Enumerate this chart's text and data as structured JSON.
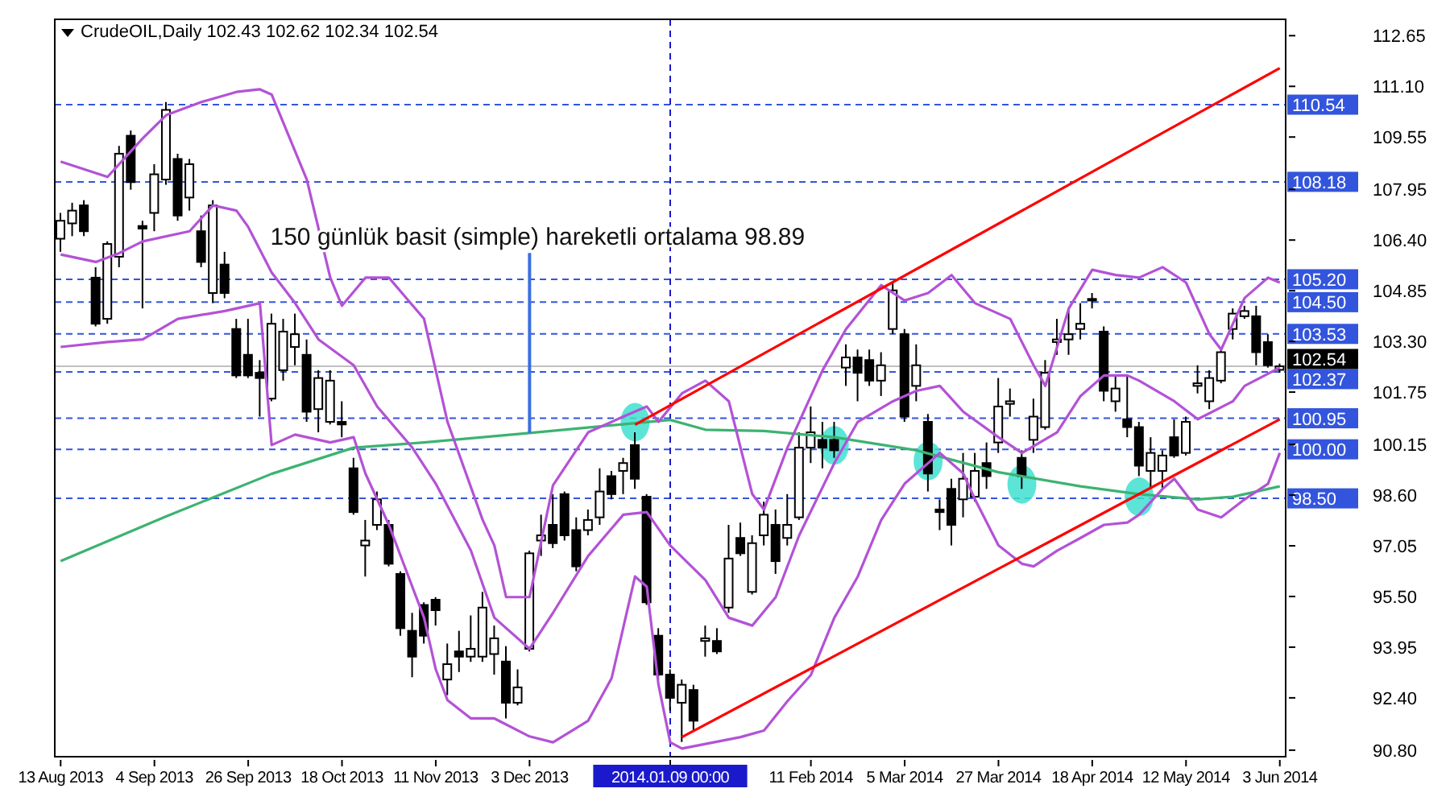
{
  "chart_data": {
    "type": "candlestick",
    "title": "CrudeOIL,Daily 102.43 102.62 102.34 102.54",
    "categories": [
      "13 Aug 2013",
      null,
      null,
      null,
      null,
      null,
      null,
      null,
      "4 Sep 2013",
      null,
      null,
      null,
      null,
      null,
      null,
      null,
      "26 Sep 2013",
      null,
      null,
      null,
      null,
      null,
      null,
      null,
      "18 Oct 2013",
      null,
      null,
      null,
      null,
      null,
      null,
      null,
      "11 Nov 2013",
      null,
      null,
      null,
      null,
      null,
      null,
      null,
      "3 Dec 2013",
      null,
      null,
      null,
      null,
      null,
      null,
      null,
      null,
      null,
      null,
      null,
      "2014.01.09 00:00",
      null,
      null,
      null,
      null,
      null,
      null,
      null,
      null,
      null,
      null,
      null,
      "11 Feb 2014",
      null,
      null,
      null,
      null,
      null,
      null,
      null,
      "5 Mar 2014",
      null,
      null,
      null,
      null,
      null,
      null,
      null,
      "27 Mar 2014",
      null,
      null,
      null,
      null,
      null,
      null,
      null,
      "18 Apr 2014",
      null,
      null,
      null,
      null,
      null,
      null,
      null,
      "12 May 2014",
      null,
      null,
      null,
      null,
      null,
      null,
      null,
      "3 Jun 2014"
    ],
    "ohlc": [
      [
        106.44,
        107.23,
        106.04,
        106.99
      ],
      [
        106.91,
        107.54,
        106.52,
        107.3
      ],
      [
        107.46,
        107.62,
        106.52,
        106.67
      ],
      [
        105.25,
        105.57,
        103.76,
        103.84
      ],
      [
        103.99,
        106.36,
        103.84,
        106.28
      ],
      [
        105.89,
        109.28,
        105.57,
        109.04
      ],
      [
        109.59,
        109.75,
        107.94,
        108.17
      ],
      [
        106.83,
        106.99,
        104.31,
        106.75
      ],
      [
        107.23,
        108.72,
        106.67,
        108.41
      ],
      [
        108.25,
        110.62,
        108.09,
        110.38
      ],
      [
        108.88,
        109.04,
        106.99,
        107.15
      ],
      [
        107.7,
        108.88,
        107.3,
        108.72
      ],
      [
        106.67,
        107.15,
        105.57,
        105.73
      ],
      [
        104.78,
        107.62,
        104.47,
        107.46
      ],
      [
        105.65,
        106.04,
        104.62,
        104.78
      ],
      [
        103.68,
        103.99,
        102.18,
        102.26
      ],
      [
        102.89,
        103.99,
        102.18,
        102.26
      ],
      [
        102.34,
        102.73,
        101.0,
        102.18
      ],
      [
        101.55,
        104.15,
        101.47,
        103.84
      ],
      [
        102.42,
        103.99,
        102.1,
        103.6
      ],
      [
        103.13,
        104.15,
        102.57,
        103.52
      ],
      [
        102.89,
        103.36,
        100.84,
        101.15
      ],
      [
        101.23,
        102.42,
        100.52,
        102.18
      ],
      [
        100.84,
        102.42,
        100.76,
        102.1
      ],
      [
        100.84,
        101.47,
        100.37,
        100.76
      ],
      [
        99.42,
        99.74,
        98.0,
        98.08
      ],
      [
        97.06,
        97.84,
        96.11,
        97.21
      ],
      [
        97.69,
        98.71,
        97.53,
        98.47
      ],
      [
        97.69,
        97.84,
        96.42,
        96.5
      ],
      [
        96.19,
        96.27,
        94.3,
        94.53
      ],
      [
        94.45,
        95.0,
        93.03,
        93.66
      ],
      [
        95.24,
        95.32,
        94.06,
        94.3
      ],
      [
        95.4,
        95.48,
        94.61,
        95.08
      ],
      [
        92.96,
        94.06,
        92.48,
        93.43
      ],
      [
        93.82,
        94.45,
        93.19,
        93.66
      ],
      [
        93.66,
        94.92,
        93.5,
        93.9
      ],
      [
        93.66,
        95.64,
        93.5,
        95.16
      ],
      [
        93.74,
        94.61,
        93.11,
        94.22
      ],
      [
        93.51,
        93.98,
        91.77,
        92.25
      ],
      [
        92.25,
        93.27,
        92.17,
        92.72
      ],
      [
        93.9,
        96.9,
        93.82,
        96.82
      ],
      [
        97.21,
        98.0,
        96.74,
        97.37
      ],
      [
        97.69,
        98.63,
        96.98,
        97.13
      ],
      [
        98.63,
        98.71,
        97.21,
        97.37
      ],
      [
        97.53,
        97.92,
        96.27,
        96.42
      ],
      [
        97.53,
        98.16,
        97.37,
        97.84
      ],
      [
        97.92,
        99.42,
        97.69,
        98.71
      ],
      [
        99.18,
        99.34,
        98.47,
        98.63
      ],
      [
        99.34,
        99.74,
        98.63,
        99.58
      ],
      [
        100.13,
        100.52,
        98.79,
        99.1
      ],
      [
        98.55,
        98.63,
        95.24,
        95.32
      ],
      [
        94.3,
        94.53,
        92.96,
        93.11
      ],
      [
        93.11,
        93.27,
        92.01,
        92.4
      ],
      [
        92.25,
        92.96,
        91.05,
        92.8
      ],
      [
        92.64,
        92.8,
        91.38,
        91.7
      ],
      [
        94.14,
        94.61,
        93.66,
        94.22
      ],
      [
        94.14,
        94.53,
        93.74,
        93.82
      ],
      [
        95.16,
        97.69,
        95.0,
        96.66
      ],
      [
        97.29,
        97.76,
        96.74,
        96.82
      ],
      [
        95.64,
        97.37,
        95.56,
        97.13
      ],
      [
        97.37,
        98.4,
        97.06,
        98.0
      ],
      [
        97.69,
        98.16,
        96.19,
        96.58
      ],
      [
        97.29,
        98.63,
        97.06,
        97.69
      ],
      [
        97.92,
        100.52,
        97.84,
        100.05
      ],
      [
        100.05,
        101.31,
        99.58,
        100.52
      ],
      [
        100.29,
        100.84,
        99.42,
        100.05
      ],
      [
        100.29,
        100.84,
        99.74,
        99.97
      ],
      [
        102.5,
        103.21,
        101.94,
        102.81
      ],
      [
        102.81,
        103.05,
        101.47,
        102.34
      ],
      [
        102.73,
        103.05,
        101.94,
        102.1
      ],
      [
        102.1,
        102.97,
        101.63,
        102.57
      ],
      [
        103.68,
        105.1,
        103.52,
        104.86
      ],
      [
        103.52,
        103.68,
        100.84,
        101.0
      ],
      [
        101.94,
        103.21,
        101.47,
        102.57
      ],
      [
        100.84,
        101.08,
        98.71,
        99.26
      ],
      [
        98.16,
        98.47,
        97.53,
        98.08
      ],
      [
        98.79,
        99.1,
        97.06,
        97.69
      ],
      [
        98.47,
        99.89,
        97.92,
        99.1
      ],
      [
        98.55,
        99.89,
        98.4,
        99.34
      ],
      [
        99.58,
        100.21,
        98.79,
        99.18
      ],
      [
        100.21,
        102.18,
        99.89,
        101.31
      ],
      [
        101.39,
        101.86,
        101.0,
        101.47
      ],
      [
        99.74,
        99.97,
        98.79,
        99.18
      ],
      [
        100.29,
        101.55,
        99.89,
        101.0
      ],
      [
        100.68,
        102.73,
        100.6,
        102.34
      ],
      [
        103.28,
        103.99,
        102.89,
        103.36
      ],
      [
        103.36,
        104.31,
        102.89,
        103.52
      ],
      [
        103.68,
        104.47,
        103.36,
        103.84
      ],
      [
        104.55,
        104.78,
        104.31,
        104.6
      ],
      [
        103.6,
        103.76,
        101.47,
        101.79
      ],
      [
        101.47,
        102.26,
        101.15,
        101.86
      ],
      [
        100.92,
        102.26,
        100.37,
        100.68
      ],
      [
        100.68,
        100.84,
        99.18,
        99.5
      ],
      [
        99.34,
        100.37,
        98.79,
        99.89
      ],
      [
        99.34,
        99.97,
        98.79,
        99.81
      ],
      [
        100.37,
        100.92,
        99.74,
        99.81
      ],
      [
        99.89,
        101.0,
        99.81,
        100.84
      ],
      [
        101.94,
        102.57,
        101.71,
        102.02
      ],
      [
        101.47,
        102.42,
        101.23,
        102.18
      ],
      [
        102.1,
        103.05,
        102.02,
        102.97
      ],
      [
        103.68,
        104.31,
        103.36,
        104.15
      ],
      [
        104.07,
        104.39,
        103.99,
        104.23
      ],
      [
        104.07,
        104.39,
        102.57,
        102.97
      ],
      [
        103.28,
        103.52,
        102.5,
        102.57
      ],
      [
        102.43,
        102.62,
        102.34,
        102.54
      ]
    ],
    "series": [
      {
        "type": "line",
        "color": "#3cb371",
        "values": [
          96.58,
          null,
          null,
          null,
          null,
          null,
          null,
          null,
          null,
          97.95,
          null,
          null,
          null,
          null,
          null,
          null,
          null,
          null,
          99.25,
          null,
          null,
          null,
          null,
          null,
          null,
          100.05,
          null,
          null,
          null,
          null,
          null,
          100.21,
          null,
          null,
          null,
          null,
          null,
          null,
          null,
          null,
          100.5,
          null,
          null,
          null,
          null,
          null,
          null,
          null,
          null,
          null,
          null,
          null,
          100.9,
          null,
          null,
          100.6,
          null,
          null,
          null,
          null,
          100.56,
          null,
          null,
          null,
          null,
          null,
          100.37,
          null,
          null,
          null,
          null,
          null,
          null,
          99.97,
          null,
          null,
          null,
          null,
          null,
          null,
          99.3,
          null,
          null,
          null,
          null,
          null,
          null,
          98.87,
          null,
          null,
          null,
          null,
          98.63,
          null,
          null,
          null,
          null,
          98.47,
          null,
          null,
          98.55,
          null,
          null,
          null,
          98.87
        ]
      },
      {
        "type": "line",
        "color": "#b352d6",
        "values": [
          108.8,
          null,
          null,
          null,
          108.33,
          null,
          null,
          109.51,
          null,
          110.22,
          null,
          null,
          110.62,
          null,
          null,
          110.93,
          null,
          111.01,
          110.85,
          null,
          null,
          108.25,
          null,
          105.25,
          104.39,
          null,
          105.25,
          null,
          105.25,
          null,
          null,
          103.99,
          null,
          100.84,
          null,
          null,
          97.84,
          97.06,
          95.48,
          null,
          95.48,
          null,
          98.9,
          null,
          null,
          100.52,
          null,
          null,
          101.0,
          null,
          101.31,
          100.84,
          null,
          101.71,
          null,
          102.1,
          null,
          101.47,
          null,
          98.63,
          98.16,
          null,
          100.05,
          null,
          null,
          102.42,
          null,
          103.68,
          null,
          null,
          105.02,
          null,
          104.55,
          null,
          104.78,
          null,
          105.33,
          null,
          104.47,
          null,
          null,
          103.99,
          null,
          102.57,
          101.94,
          null,
          104.31,
          null,
          105.49,
          null,
          105.33,
          null,
          105.25,
          null,
          105.57,
          null,
          105.1,
          null,
          103.52,
          103.05,
          null,
          104.63,
          null,
          105.25,
          105.1
        ]
      },
      {
        "type": "line",
        "color": "#b352d6",
        "values": [
          105.96,
          null,
          null,
          105.73,
          null,
          106.0,
          null,
          106.36,
          null,
          null,
          null,
          106.67,
          null,
          107.46,
          null,
          107.3,
          106.8,
          null,
          105.41,
          null,
          104.47,
          null,
          103.36,
          null,
          null,
          102.57,
          null,
          101.31,
          null,
          null,
          100.05,
          null,
          98.95,
          null,
          null,
          96.9,
          null,
          94.85,
          null,
          null,
          93.9,
          null,
          95.0,
          null,
          null,
          96.74,
          null,
          null,
          98.0,
          null,
          98.08,
          null,
          97.06,
          null,
          null,
          96.0,
          null,
          94.85,
          null,
          94.61,
          null,
          95.48,
          null,
          97.37,
          null,
          null,
          99.58,
          null,
          100.84,
          null,
          null,
          101.47,
          null,
          101.79,
          null,
          101.94,
          null,
          101.15,
          null,
          null,
          100.37,
          null,
          99.89,
          null,
          null,
          100.52,
          null,
          101.63,
          null,
          102.26,
          null,
          102.26,
          102.1,
          null,
          null,
          101.47,
          null,
          100.92,
          null,
          null,
          101.47,
          101.94,
          null,
          null,
          102.5
        ]
      },
      {
        "type": "line",
        "color": "#b352d6",
        "values": [
          103.13,
          null,
          null,
          null,
          103.28,
          null,
          null,
          103.36,
          null,
          null,
          103.99,
          null,
          null,
          null,
          104.23,
          null,
          null,
          104.47,
          100.13,
          null,
          100.45,
          null,
          null,
          100.21,
          null,
          100.37,
          99.26,
          null,
          97.69,
          null,
          null,
          94.85,
          93.27,
          92.33,
          null,
          91.77,
          null,
          91.77,
          null,
          null,
          91.22,
          null,
          91.04,
          null,
          null,
          91.7,
          null,
          93.0,
          null,
          96.11,
          95.8,
          92.8,
          91.04,
          90.85,
          null,
          null,
          null,
          null,
          91.2,
          null,
          91.4,
          null,
          92.3,
          null,
          93.1,
          null,
          94.85,
          null,
          96.11,
          null,
          97.84,
          null,
          98.95,
          null,
          null,
          99.89,
          null,
          99.26,
          98.47,
          null,
          97.06,
          null,
          96.5,
          96.42,
          null,
          96.9,
          null,
          97.29,
          null,
          97.69,
          null,
          97.76,
          98.0,
          null,
          98.79,
          99.1,
          null,
          98.16,
          null,
          97.92,
          null,
          98.47,
          null,
          98.95,
          99.89
        ]
      },
      {
        "type": "line",
        "color": "#ff0000",
        "values": [
          null,
          null,
          null,
          null,
          null,
          null,
          null,
          null,
          null,
          null,
          null,
          null,
          null,
          null,
          null,
          null,
          null,
          null,
          null,
          null,
          null,
          null,
          null,
          null,
          null,
          null,
          null,
          null,
          null,
          null,
          null,
          null,
          null,
          null,
          null,
          null,
          null,
          null,
          null,
          null,
          null,
          null,
          null,
          null,
          null,
          null,
          null,
          null,
          null,
          100.75,
          null,
          null,
          null,
          null,
          null,
          null,
          null,
          null,
          null,
          null,
          null,
          null,
          null,
          null,
          null,
          null,
          null,
          null,
          null,
          null,
          null,
          null,
          null,
          null,
          null,
          null,
          null,
          null,
          null,
          null,
          null,
          null,
          null,
          null,
          null,
          null,
          null,
          null,
          null,
          null,
          null,
          null,
          null,
          null,
          null,
          null,
          null,
          null,
          null,
          null,
          null,
          null,
          null,
          null,
          111.66
        ]
      },
      {
        "type": "line",
        "color": "#ff0000",
        "values": [
          null,
          null,
          null,
          null,
          null,
          null,
          null,
          null,
          null,
          null,
          null,
          null,
          null,
          null,
          null,
          null,
          null,
          null,
          null,
          null,
          null,
          null,
          null,
          null,
          null,
          null,
          null,
          null,
          null,
          null,
          null,
          null,
          null,
          null,
          null,
          null,
          null,
          null,
          null,
          null,
          null,
          null,
          null,
          null,
          null,
          null,
          null,
          null,
          null,
          null,
          null,
          null,
          null,
          91.2,
          null,
          null,
          null,
          null,
          null,
          null,
          null,
          null,
          null,
          null,
          null,
          null,
          null,
          null,
          null,
          null,
          null,
          null,
          null,
          null,
          null,
          null,
          null,
          null,
          null,
          null,
          null,
          null,
          null,
          null,
          null,
          null,
          null,
          null,
          null,
          null,
          null,
          null,
          null,
          null,
          null,
          null,
          null,
          null,
          null,
          null,
          null,
          null,
          null,
          null,
          100.92
        ]
      },
      {
        "type": "scatter",
        "color": "#40e0d0",
        "marker": "circle",
        "values": [
          null,
          null,
          null,
          null,
          null,
          null,
          null,
          null,
          null,
          null,
          null,
          null,
          null,
          null,
          null,
          null,
          null,
          null,
          null,
          null,
          null,
          null,
          null,
          null,
          null,
          null,
          null,
          null,
          null,
          null,
          null,
          null,
          null,
          null,
          null,
          null,
          null,
          null,
          null,
          null,
          null,
          null,
          null,
          null,
          null,
          null,
          null,
          null,
          null,
          100.83,
          null,
          null,
          null,
          null,
          null,
          null,
          null,
          null,
          null,
          null,
          null,
          null,
          null,
          null,
          null,
          null,
          100.12,
          null,
          null,
          null,
          null,
          null,
          null,
          null,
          99.64,
          null,
          null,
          null,
          null,
          null,
          null,
          null,
          98.93,
          null,
          null,
          null,
          null,
          null,
          null,
          null,
          null,
          null,
          98.55,
          null,
          null,
          null,
          null,
          null,
          null,
          null,
          null,
          null,
          null,
          null,
          null
        ]
      }
    ],
    "ylim": [
      90.6,
      113.15
    ],
    "yticks": [
      {
        "value": 90.8,
        "label": "90.80"
      },
      {
        "value": 92.4,
        "label": "92.40"
      },
      93.95,
      {
        "value": 95.5,
        "label": "95.50"
      },
      97.05,
      {
        "value": 98.6,
        "label": "98.60"
      },
      100.15,
      101.75,
      {
        "value": 103.3,
        "label": "103.30"
      },
      104.85,
      {
        "value": 106.4,
        "label": "106.40"
      },
      107.95,
      109.55,
      {
        "value": 111.1,
        "label": "111.10"
      },
      112.65
    ],
    "ref_lines": [
      {
        "axis": "y",
        "value": 110.54,
        "label": "110.54",
        "color": "#3355dd",
        "line_style": "dashed"
      },
      {
        "axis": "y",
        "value": 108.18,
        "label": "108.18",
        "color": "#3355dd",
        "line_style": "dashed"
      },
      {
        "axis": "y",
        "value": 105.2,
        "label": "105.20",
        "color": "#3355dd",
        "line_style": "dashed"
      },
      {
        "axis": "y",
        "value": 104.5,
        "label": "104.50",
        "color": "#3355dd",
        "line_style": "dashed"
      },
      {
        "axis": "y",
        "value": 103.53,
        "label": "103.53",
        "color": "#3355dd",
        "line_style": "dashed"
      },
      {
        "axis": "y",
        "value": 102.37,
        "label": "102.37",
        "color": "#3355dd",
        "line_style": "dashed"
      },
      {
        "axis": "y",
        "value": 102.54,
        "label": "102.54",
        "color": "#c0c0c0",
        "line_style": "solid"
      },
      {
        "axis": "y",
        "value": 100.95,
        "label": "100.95",
        "color": "#3355dd",
        "line_style": "dashed"
      },
      {
        "axis": "y",
        "value": 100,
        "label": "100.00",
        "color": "#3355dd",
        "line_style": "dashed"
      },
      {
        "axis": "y",
        "value": 98.5,
        "label": "98.50",
        "color": "#3355dd",
        "line_style": "dashed"
      },
      {
        "axis": "x",
        "value": "2014.01.09 00:00",
        "color": "#1a1acc",
        "line_style": "dashed"
      }
    ],
    "annotations": [
      {
        "text": "150 günlük basit (simple) hareketli ortalama 98.89",
        "x": "3 Dec 2013",
        "y": 100.5
      }
    ],
    "grid": false
  }
}
